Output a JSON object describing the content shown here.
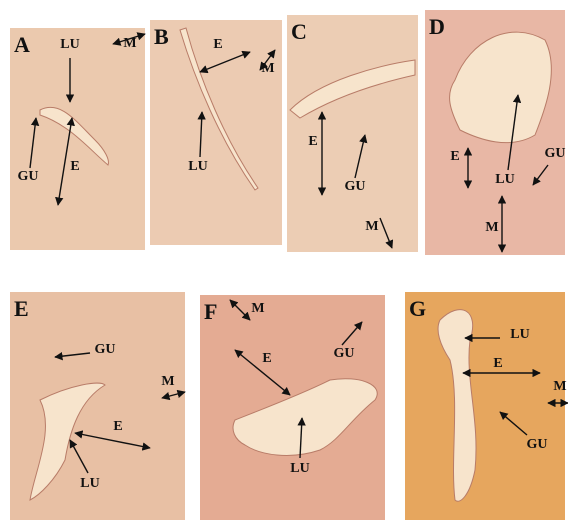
{
  "panels": [
    {
      "letter": "A",
      "labels": [
        "LU",
        "M",
        "GU",
        "E"
      ]
    },
    {
      "letter": "B",
      "labels": [
        "E",
        "M",
        "LU"
      ]
    },
    {
      "letter": "C",
      "labels": [
        "E",
        "GU",
        "M"
      ]
    },
    {
      "letter": "D",
      "labels": [
        "E",
        "LU",
        "GU",
        "M"
      ]
    },
    {
      "letter": "E",
      "labels": [
        "GU",
        "M",
        "E",
        "LU"
      ]
    },
    {
      "letter": "F",
      "labels": [
        "M",
        "E",
        "GU",
        "LU"
      ]
    },
    {
      "letter": "G",
      "labels": [
        "LU",
        "E",
        "M",
        "GU"
      ]
    }
  ]
}
